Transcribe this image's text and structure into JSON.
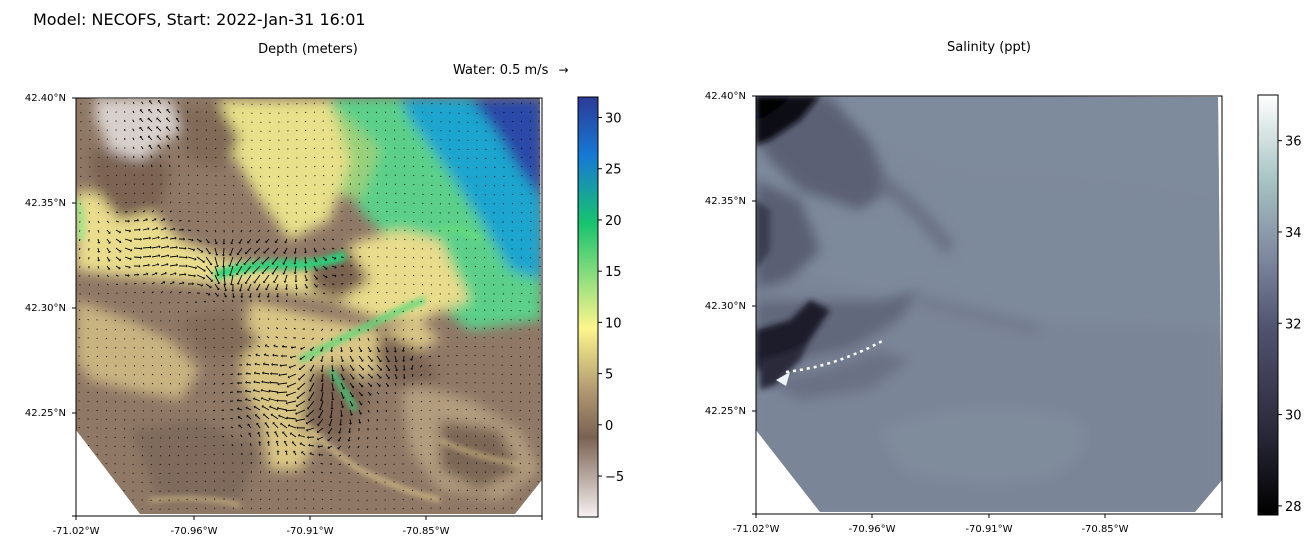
{
  "suptitle": "Model: NECOFS, Start: 2022-Jan-31 16:01",
  "chart_data": [
    {
      "type": "heatmap",
      "title": "Depth (meters)",
      "quiver_key": "Water: 0.5 m/s",
      "quiver_key_arrow": "→",
      "x_ticks": [
        "-71.02°W",
        "-70.96°W",
        "-70.91°W",
        "-70.85°W"
      ],
      "y_ticks": [
        "42.40°N",
        "42.35°N",
        "42.30°N",
        "42.25°N"
      ],
      "xlim": [
        -71.02,
        -70.78
      ],
      "ylim": [
        42.2,
        42.4
      ],
      "colorbar": {
        "range": [
          -9,
          32
        ],
        "ticks": [
          -5,
          0,
          5,
          10,
          15,
          20,
          25,
          30
        ],
        "tick_labels": [
          "−5",
          "0",
          "5",
          "10",
          "15",
          "20",
          "25",
          "30"
        ],
        "colormap": "terrain_r",
        "stops": [
          "#f6f1f1",
          "#7a6252",
          "#b09872",
          "#fdf68c",
          "#17c36e",
          "#1679d6",
          "#2c3a97"
        ]
      }
    },
    {
      "type": "heatmap",
      "title": "Salinity (ppt)",
      "x_ticks": [
        "-71.02°W",
        "-70.96°W",
        "-70.91°W",
        "-70.85°W"
      ],
      "y_ticks": [
        "42.40°N",
        "42.35°N",
        "42.30°N",
        "42.25°N"
      ],
      "xlim": [
        -71.02,
        -70.78
      ],
      "ylim": [
        42.2,
        42.4
      ],
      "colorbar": {
        "range": [
          27.8,
          37
        ],
        "ticks": [
          28,
          30,
          32,
          34,
          36
        ],
        "tick_labels": [
          "28",
          "30",
          "32",
          "34",
          "36"
        ],
        "colormap": "bone",
        "stops": [
          "#000000",
          "#2a2a3b",
          "#525470",
          "#7f8a9f",
          "#a8c4c4",
          "#ffffff"
        ]
      }
    }
  ],
  "colors": {
    "land_cut": "#ffffff",
    "salinity_field": "#7d8a9c"
  }
}
